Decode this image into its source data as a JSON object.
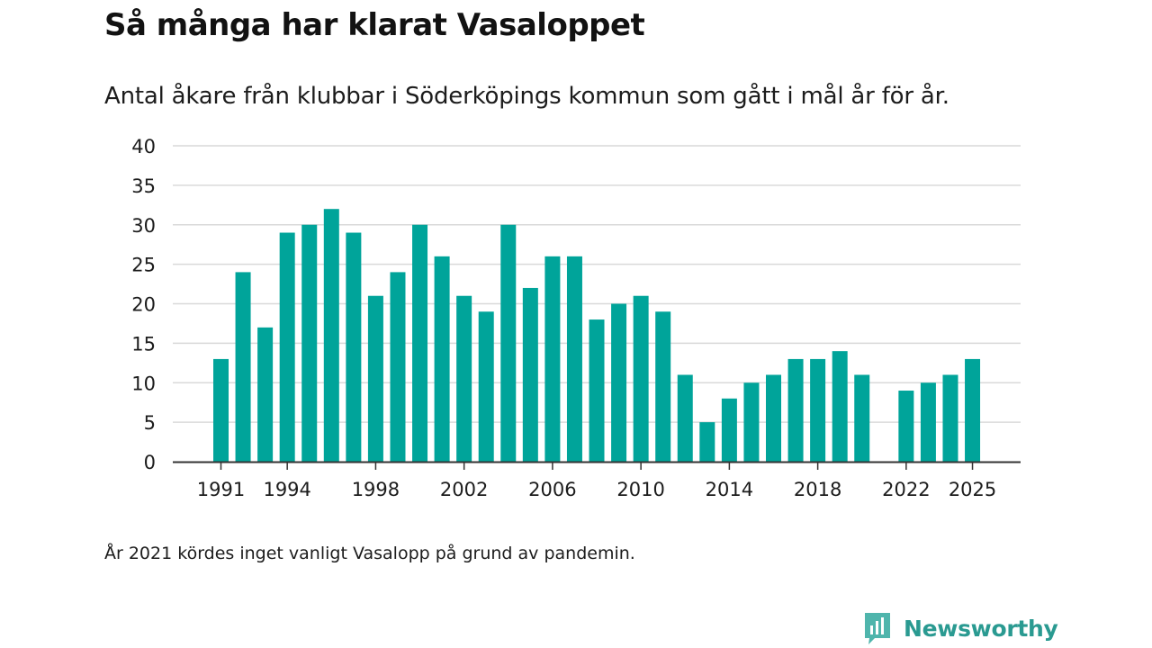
{
  "title": "Så många har klarat Vasaloppet",
  "subtitle": "Antal åkare från klubbar i Söderköpings kommun som gått i mål år för år.",
  "footnote": "År 2021 kördes inget vanligt Vasalopp på grund av pandemin.",
  "brand": {
    "name": "Newsworthy",
    "icon": "newsworthy-logo-icon",
    "color": "#2a9a91"
  },
  "chart_data": {
    "type": "bar",
    "title": "Så många har klarat Vasaloppet",
    "xlabel": "",
    "ylabel": "",
    "ylim": [
      0,
      40
    ],
    "yticks": [
      0,
      5,
      10,
      15,
      20,
      25,
      30,
      35,
      40
    ],
    "xticks": [
      1991,
      1994,
      1998,
      2002,
      2006,
      2010,
      2014,
      2018,
      2022,
      2025
    ],
    "grid": true,
    "bar_color": "#00a49a",
    "gridline_color": "#d9d9d9",
    "categories": [
      1991,
      1992,
      1993,
      1994,
      1995,
      1996,
      1997,
      1998,
      1999,
      2000,
      2001,
      2002,
      2003,
      2004,
      2005,
      2006,
      2007,
      2008,
      2009,
      2010,
      2011,
      2012,
      2013,
      2014,
      2015,
      2016,
      2017,
      2018,
      2019,
      2020,
      2021,
      2022,
      2023,
      2024,
      2025
    ],
    "values": [
      13,
      24,
      17,
      29,
      30,
      32,
      29,
      21,
      24,
      30,
      26,
      21,
      19,
      30,
      22,
      26,
      26,
      18,
      20,
      21,
      19,
      11,
      5,
      8,
      10,
      11,
      13,
      13,
      14,
      11,
      null,
      9,
      10,
      11,
      13
    ]
  }
}
